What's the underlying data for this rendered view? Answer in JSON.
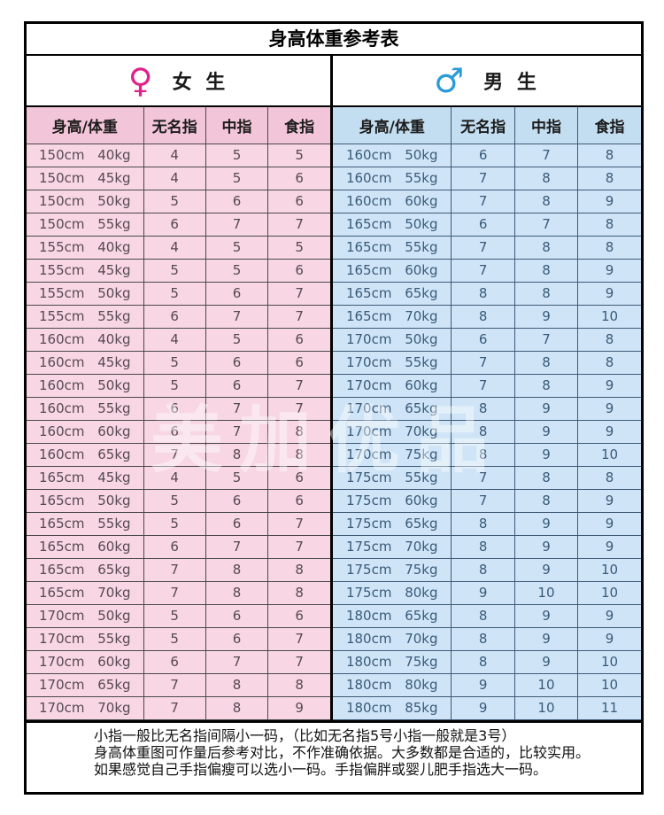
{
  "title": "身高体重参考表",
  "female": {
    "symbol": "♀",
    "label": "女 生",
    "columns": [
      "身高/体重",
      "无名指",
      "中指",
      "食指"
    ],
    "rows": [
      [
        "150cm 40kg",
        "4",
        "5",
        "5"
      ],
      [
        "150cm 45kg",
        "4",
        "5",
        "6"
      ],
      [
        "150cm 50kg",
        "5",
        "6",
        "6"
      ],
      [
        "150cm 55kg",
        "6",
        "7",
        "7"
      ],
      [
        "155cm 40kg",
        "4",
        "5",
        "5"
      ],
      [
        "155cm 45kg",
        "5",
        "5",
        "6"
      ],
      [
        "155cm 50kg",
        "5",
        "6",
        "7"
      ],
      [
        "155cm 55kg",
        "6",
        "7",
        "7"
      ],
      [
        "160cm 40kg",
        "4",
        "5",
        "6"
      ],
      [
        "160cm 45kg",
        "5",
        "6",
        "6"
      ],
      [
        "160cm 50kg",
        "5",
        "6",
        "7"
      ],
      [
        "160cm 55kg",
        "6",
        "7",
        "7"
      ],
      [
        "160cm 60kg",
        "6",
        "7",
        "8"
      ],
      [
        "160cm 65kg",
        "7",
        "8",
        "8"
      ],
      [
        "165cm 45kg",
        "4",
        "5",
        "6"
      ],
      [
        "165cm 50kg",
        "5",
        "6",
        "6"
      ],
      [
        "165cm 55kg",
        "5",
        "6",
        "7"
      ],
      [
        "165cm 60kg",
        "6",
        "7",
        "7"
      ],
      [
        "165cm 65kg",
        "7",
        "8",
        "8"
      ],
      [
        "165cm 70kg",
        "7",
        "8",
        "8"
      ],
      [
        "170cm 50kg",
        "5",
        "6",
        "6"
      ],
      [
        "170cm 55kg",
        "5",
        "6",
        "7"
      ],
      [
        "170cm 60kg",
        "6",
        "7",
        "7"
      ],
      [
        "170cm 65kg",
        "7",
        "8",
        "8"
      ],
      [
        "170cm 70kg",
        "7",
        "8",
        "9"
      ]
    ]
  },
  "male": {
    "symbol": "♂",
    "label": "男 生",
    "columns": [
      "身高/体重",
      "无名指",
      "中指",
      "食指"
    ],
    "rows": [
      [
        "160cm 50kg",
        "6",
        "7",
        "8"
      ],
      [
        "160cm 55kg",
        "7",
        "8",
        "8"
      ],
      [
        "160cm 60kg",
        "7",
        "8",
        "9"
      ],
      [
        "165cm 50kg",
        "6",
        "7",
        "8"
      ],
      [
        "165cm 55kg",
        "7",
        "8",
        "8"
      ],
      [
        "165cm 60kg",
        "7",
        "8",
        "9"
      ],
      [
        "165cm 65kg",
        "8",
        "8",
        "9"
      ],
      [
        "165cm 70kg",
        "8",
        "9",
        "10"
      ],
      [
        "170cm 50kg",
        "6",
        "7",
        "8"
      ],
      [
        "170cm 55kg",
        "7",
        "8",
        "8"
      ],
      [
        "170cm 60kg",
        "7",
        "8",
        "9"
      ],
      [
        "170cm 65kg",
        "8",
        "9",
        "9"
      ],
      [
        "170cm 70kg",
        "8",
        "9",
        "9"
      ],
      [
        "170cm 75kg",
        "8",
        "9",
        "10"
      ],
      [
        "175cm 55kg",
        "7",
        "8",
        "8"
      ],
      [
        "175cm 60kg",
        "7",
        "8",
        "9"
      ],
      [
        "175cm 65kg",
        "8",
        "9",
        "9"
      ],
      [
        "175cm 70kg",
        "8",
        "9",
        "9"
      ],
      [
        "175cm 75kg",
        "8",
        "9",
        "10"
      ],
      [
        "175cm 80kg",
        "9",
        "10",
        "10"
      ],
      [
        "180cm 65kg",
        "8",
        "9",
        "9"
      ],
      [
        "180cm 70kg",
        "8",
        "9",
        "9"
      ],
      [
        "180cm 75kg",
        "8",
        "9",
        "10"
      ],
      [
        "180cm 80kg",
        "9",
        "10",
        "10"
      ],
      [
        "180cm 85kg",
        "9",
        "10",
        "11"
      ]
    ]
  },
  "footer": {
    "lines": [
      "小指一般比无名指间隔小一码，（比如无名指5号小指一般就是3号）",
      "身高体重图可作量后参考对比，不作准确依据。大多数都是合适的，比较实用。",
      "如果感觉自己手指偏瘦可以选小一码。手指偏胖或婴儿肥手指选大一码。"
    ]
  },
  "watermark": "美加优品",
  "colors": {
    "female_symbol": "#e0218a",
    "male_symbol": "#2b9bd7",
    "female_header_bg": "#f3c5d8",
    "female_row_bg": "#f8d6e4",
    "male_header_bg": "#c3ddf1",
    "male_row_bg": "#cfe5f7",
    "border": "#000000"
  }
}
